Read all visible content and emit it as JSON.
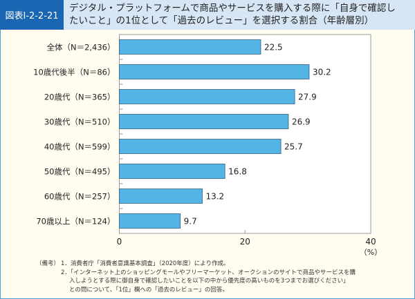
{
  "header": {
    "tag": "図表Ⅰ-2-2-21",
    "title_line1": "デジタル・プラットフォームで商品やサービスを購入する際に「自身で確認し",
    "title_line2": "たいこと」の1位として「過去のレビュー」を選択する割合（年齢層別）"
  },
  "chart_data": {
    "type": "bar",
    "orientation": "horizontal",
    "title": "デジタル・プラットフォームで商品やサービスを購入する際に「自身で確認したいこと」の1位として「過去のレビュー」を選択する割合（年齢層別）",
    "categories": [
      "全体（N＝2,436）",
      "10歳代後半（N＝86）",
      "20歳代（N＝365）",
      "30歳代（N＝510）",
      "40歳代（N＝599）",
      "50歳代（N＝495）",
      "60歳代（N＝257）",
      "70歳以上（N＝124）"
    ],
    "values": [
      22.5,
      30.2,
      27.9,
      26.9,
      25.7,
      16.8,
      13.2,
      9.7
    ],
    "xlim": [
      0,
      40
    ],
    "xticks": [
      0,
      20,
      40
    ],
    "xlabel": "（%）",
    "bar_color": "#55b4e6",
    "grid": false
  },
  "notes": {
    "label": "（備考）",
    "items": [
      "1．消費者庁「消費者意識基本調査」（2020年度）により作成。",
      "2．「インターネット上のショッピングモールやフリーマーケット、オークションのサイトで商品やサービスを購",
      "入しようとする際に御自身で確認したいことを以下の中から優先度の高いものを3つまでお選びください」",
      "との問について、「1位」欄への「過去のレビュー」の回答。"
    ]
  }
}
